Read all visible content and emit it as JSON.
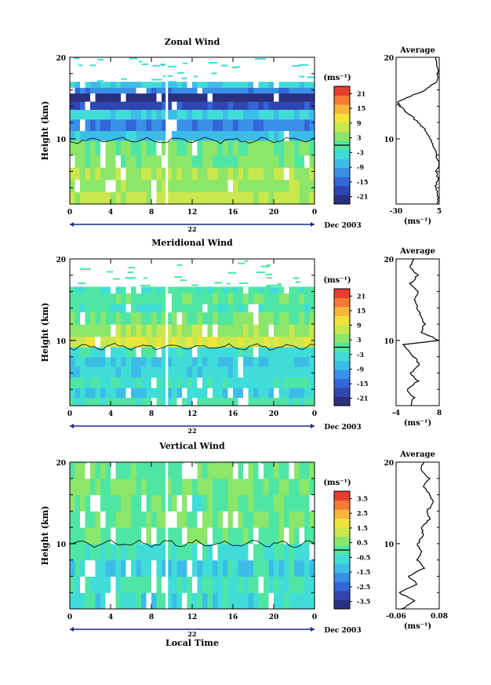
{
  "figure": {
    "xaxis_label": "Local Time",
    "date_label": "Dec 2003",
    "day_label": "22",
    "colorbar_unit": "(ms⁻¹)",
    "average_title": "Average",
    "average_xlabel": "(ms⁻¹)"
  },
  "chart_data": [
    {
      "type": "heatmap",
      "title": "Zonal Wind",
      "ylabel": "Height (km)",
      "ylim": [
        2,
        20
      ],
      "yticks": [
        10,
        20
      ],
      "xlim": [
        0,
        24
      ],
      "xticks": [
        "0",
        "4",
        "8",
        "12",
        "16",
        "20",
        "0"
      ],
      "colorbar": {
        "ticks": [
          "21",
          "15",
          "9",
          "3",
          "-3",
          "-9",
          "-15",
          "-21"
        ],
        "range": [
          -24,
          24
        ]
      },
      "zero_contour_km": 9.8,
      "bands": [
        {
          "h0": 2,
          "h1": 3.5,
          "v": 7
        },
        {
          "h0": 3.5,
          "h1": 5,
          "v": 4
        },
        {
          "h0": 5,
          "h1": 6.5,
          "v": 6
        },
        {
          "h0": 6.5,
          "h1": 8,
          "v": 3
        },
        {
          "h0": 8,
          "h1": 9.8,
          "v": 2
        },
        {
          "h0": 9.8,
          "h1": 11,
          "v": -7
        },
        {
          "h0": 11,
          "h1": 12.4,
          "v": -12
        },
        {
          "h0": 12.4,
          "h1": 13.6,
          "v": -5
        },
        {
          "h0": 13.6,
          "h1": 14.6,
          "v": -18
        },
        {
          "h0": 14.6,
          "h1": 15.6,
          "v": -23
        },
        {
          "h0": 15.6,
          "h1": 16.3,
          "v": -12
        },
        {
          "h0": 16.3,
          "h1": 17,
          "v": -5
        }
      ],
      "gaps": [
        9.4,
        9.6
      ],
      "average": {
        "xlim": [
          -30,
          5
        ],
        "xticks": [
          "-30",
          "5"
        ],
        "profile": [
          [
            2,
            3
          ],
          [
            3,
            4
          ],
          [
            4,
            2
          ],
          [
            5,
            4
          ],
          [
            6,
            3
          ],
          [
            7,
            5
          ],
          [
            8,
            2
          ],
          [
            9,
            1
          ],
          [
            10,
            -2
          ],
          [
            11,
            -6
          ],
          [
            12,
            -12
          ],
          [
            13,
            -19
          ],
          [
            14,
            -27
          ],
          [
            14.5,
            -29
          ],
          [
            15,
            -22
          ],
          [
            16,
            -6
          ],
          [
            17,
            3
          ],
          [
            18,
            4
          ],
          [
            19,
            3
          ],
          [
            20,
            2
          ]
        ]
      }
    },
    {
      "type": "heatmap",
      "title": "Meridional Wind",
      "ylabel": "Height (km)",
      "ylim": [
        2,
        20
      ],
      "yticks": [
        10,
        20
      ],
      "xlim": [
        0,
        24
      ],
      "xticks": [
        "0",
        "4",
        "8",
        "12",
        "16",
        "20",
        "0"
      ],
      "colorbar": {
        "ticks": [
          "21",
          "15",
          "9",
          "3",
          "-3",
          "-9",
          "-15",
          "-21"
        ],
        "range": [
          -24,
          24
        ]
      },
      "zero_contour_km": 9.2,
      "bands": [
        {
          "h0": 2,
          "h1": 3,
          "v": -1
        },
        {
          "h0": 3,
          "h1": 4.2,
          "v": -5
        },
        {
          "h0": 4.2,
          "h1": 5.5,
          "v": -2
        },
        {
          "h0": 5.5,
          "h1": 6.8,
          "v": -4
        },
        {
          "h0": 6.8,
          "h1": 8,
          "v": -6
        },
        {
          "h0": 8,
          "h1": 9.2,
          "v": -3
        },
        {
          "h0": 9.2,
          "h1": 10.5,
          "v": 9
        },
        {
          "h0": 10.5,
          "h1": 12,
          "v": 5
        },
        {
          "h0": 12,
          "h1": 13.5,
          "v": 2
        },
        {
          "h0": 13.5,
          "h1": 14.5,
          "v": -1
        },
        {
          "h0": 14.5,
          "h1": 15.8,
          "v": 1
        },
        {
          "h0": 15.8,
          "h1": 16.6,
          "v": -1
        }
      ],
      "gaps": [
        9.4,
        9.6
      ],
      "average": {
        "xlim": [
          -4,
          8
        ],
        "xticks": [
          "-4",
          "8"
        ],
        "profile": [
          [
            2,
            0
          ],
          [
            3,
            1
          ],
          [
            4,
            -1
          ],
          [
            5,
            2
          ],
          [
            6,
            0
          ],
          [
            7,
            2.5
          ],
          [
            8,
            1
          ],
          [
            9,
            -1
          ],
          [
            9.5,
            -2
          ],
          [
            10,
            8
          ],
          [
            11,
            3
          ],
          [
            12,
            4
          ],
          [
            13,
            3
          ],
          [
            14,
            2
          ],
          [
            15,
            1
          ],
          [
            16,
            2
          ],
          [
            17,
            0
          ],
          [
            18,
            2
          ],
          [
            19,
            0
          ],
          [
            20,
            1
          ]
        ]
      }
    },
    {
      "type": "heatmap",
      "title": "Vertical Wind",
      "ylabel": "Height (km)",
      "ylim": [
        2,
        20
      ],
      "yticks": [
        10,
        20
      ],
      "xlim": [
        0,
        24
      ],
      "xticks": [
        "0",
        "4",
        "8",
        "12",
        "16",
        "20",
        "0"
      ],
      "colorbar": {
        "ticks": [
          "3.5",
          "2.5",
          "1.5",
          "0.5",
          "-0.5",
          "-1.5",
          "-2.5",
          "-3.5"
        ],
        "range": [
          -4,
          4
        ]
      },
      "zero_contour_km": 10,
      "bands": [
        {
          "h0": 2,
          "h1": 4,
          "v": -0.6
        },
        {
          "h0": 4,
          "h1": 6,
          "v": -0.4
        },
        {
          "h0": 6,
          "h1": 8,
          "v": -0.7
        },
        {
          "h0": 8,
          "h1": 10,
          "v": -0.3
        },
        {
          "h0": 10,
          "h1": 12,
          "v": 0.2
        },
        {
          "h0": 12,
          "h1": 14,
          "v": 0.3
        },
        {
          "h0": 14,
          "h1": 16,
          "v": 0.1
        },
        {
          "h0": 16,
          "h1": 18,
          "v": 0.3
        },
        {
          "h0": 18,
          "h1": 20,
          "v": 0.2
        }
      ],
      "gaps": [
        9.4,
        9.6
      ],
      "average": {
        "xlim": [
          -0.06,
          0.08
        ],
        "xticks": [
          "-0.06",
          "0.08"
        ],
        "profile": [
          [
            2,
            -0.04
          ],
          [
            3,
            0.0
          ],
          [
            4,
            -0.05
          ],
          [
            5,
            0.01
          ],
          [
            6,
            -0.02
          ],
          [
            7,
            0.03
          ],
          [
            8,
            0.01
          ],
          [
            9,
            0.02
          ],
          [
            10,
            0.01
          ],
          [
            11,
            0.03
          ],
          [
            12,
            0.02
          ],
          [
            13,
            0.05
          ],
          [
            14,
            0.04
          ],
          [
            15,
            0.06
          ],
          [
            16,
            0.05
          ],
          [
            17,
            0.03
          ],
          [
            18,
            0.05
          ],
          [
            19,
            0.02
          ],
          [
            20,
            0.03
          ]
        ]
      }
    }
  ]
}
